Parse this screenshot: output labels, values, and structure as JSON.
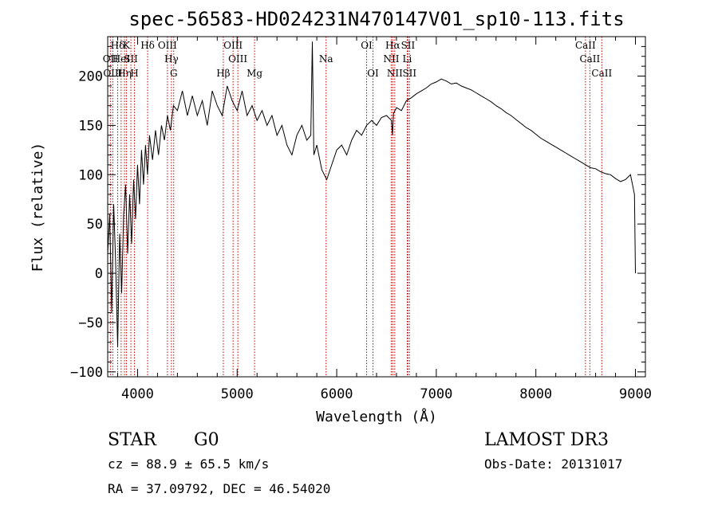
{
  "chart_data": {
    "type": "line",
    "title": "spec-56583-HD024231N470147V01_sp10-113.fits",
    "xlabel": "Wavelength (Å)",
    "ylabel": "Flux (relative)",
    "xlim": [
      3700,
      9100
    ],
    "ylim": [
      -105,
      240
    ],
    "x_ticks": [
      4000,
      5000,
      6000,
      7000,
      8000,
      9000
    ],
    "y_ticks": [
      -100,
      -50,
      0,
      50,
      100,
      150,
      200
    ],
    "grid": false,
    "series": [
      {
        "points": [
          [
            3700,
            20
          ],
          [
            3720,
            60
          ],
          [
            3740,
            -40
          ],
          [
            3760,
            70
          ],
          [
            3780,
            10
          ],
          [
            3800,
            -75
          ],
          [
            3820,
            40
          ],
          [
            3840,
            -20
          ],
          [
            3860,
            60
          ],
          [
            3880,
            90
          ],
          [
            3900,
            20
          ],
          [
            3920,
            80
          ],
          [
            3940,
            30
          ],
          [
            3960,
            95
          ],
          [
            3980,
            55
          ],
          [
            4000,
            110
          ],
          [
            4020,
            70
          ],
          [
            4040,
            125
          ],
          [
            4060,
            90
          ],
          [
            4080,
            130
          ],
          [
            4100,
            100
          ],
          [
            4120,
            140
          ],
          [
            4150,
            115
          ],
          [
            4180,
            145
          ],
          [
            4210,
            120
          ],
          [
            4240,
            150
          ],
          [
            4270,
            135
          ],
          [
            4300,
            160
          ],
          [
            4330,
            145
          ],
          [
            4360,
            170
          ],
          [
            4400,
            165
          ],
          [
            4450,
            185
          ],
          [
            4500,
            160
          ],
          [
            4550,
            180
          ],
          [
            4600,
            160
          ],
          [
            4650,
            175
          ],
          [
            4700,
            150
          ],
          [
            4750,
            185
          ],
          [
            4800,
            170
          ],
          [
            4850,
            160
          ],
          [
            4900,
            190
          ],
          [
            4950,
            175
          ],
          [
            5000,
            165
          ],
          [
            5050,
            185
          ],
          [
            5100,
            160
          ],
          [
            5150,
            170
          ],
          [
            5200,
            155
          ],
          [
            5250,
            165
          ],
          [
            5300,
            150
          ],
          [
            5350,
            160
          ],
          [
            5400,
            140
          ],
          [
            5450,
            150
          ],
          [
            5500,
            130
          ],
          [
            5550,
            120
          ],
          [
            5600,
            140
          ],
          [
            5650,
            150
          ],
          [
            5700,
            135
          ],
          [
            5740,
            140
          ],
          [
            5755,
            235
          ],
          [
            5770,
            120
          ],
          [
            5800,
            130
          ],
          [
            5850,
            105
          ],
          [
            5900,
            95
          ],
          [
            5950,
            110
          ],
          [
            6000,
            125
          ],
          [
            6050,
            130
          ],
          [
            6100,
            120
          ],
          [
            6150,
            135
          ],
          [
            6200,
            145
          ],
          [
            6250,
            140
          ],
          [
            6300,
            150
          ],
          [
            6350,
            155
          ],
          [
            6400,
            150
          ],
          [
            6450,
            158
          ],
          [
            6500,
            160
          ],
          [
            6550,
            155
          ],
          [
            6560,
            140
          ],
          [
            6570,
            162
          ],
          [
            6600,
            168
          ],
          [
            6650,
            165
          ],
          [
            6700,
            175
          ],
          [
            6750,
            178
          ],
          [
            6800,
            182
          ],
          [
            6850,
            185
          ],
          [
            6900,
            188
          ],
          [
            6950,
            192
          ],
          [
            7000,
            194
          ],
          [
            7050,
            197
          ],
          [
            7100,
            195
          ],
          [
            7150,
            192
          ],
          [
            7200,
            193
          ],
          [
            7250,
            190
          ],
          [
            7300,
            188
          ],
          [
            7350,
            186
          ],
          [
            7400,
            183
          ],
          [
            7450,
            180
          ],
          [
            7500,
            177
          ],
          [
            7550,
            174
          ],
          [
            7600,
            170
          ],
          [
            7650,
            167
          ],
          [
            7700,
            163
          ],
          [
            7750,
            160
          ],
          [
            7800,
            156
          ],
          [
            7850,
            152
          ],
          [
            7900,
            148
          ],
          [
            7950,
            145
          ],
          [
            8000,
            141
          ],
          [
            8050,
            137
          ],
          [
            8100,
            134
          ],
          [
            8150,
            131
          ],
          [
            8200,
            128
          ],
          [
            8250,
            125
          ],
          [
            8300,
            122
          ],
          [
            8350,
            119
          ],
          [
            8400,
            116
          ],
          [
            8450,
            113
          ],
          [
            8500,
            110
          ],
          [
            8550,
            107
          ],
          [
            8600,
            106
          ],
          [
            8650,
            103
          ],
          [
            8700,
            101
          ],
          [
            8750,
            100
          ],
          [
            8800,
            96
          ],
          [
            8850,
            93
          ],
          [
            8900,
            95
          ],
          [
            8950,
            100
          ],
          [
            8990,
            80
          ],
          [
            9000,
            0
          ]
        ]
      }
    ],
    "lines": [
      {
        "wl": 3727,
        "name": "OII",
        "row": 2
      },
      {
        "wl": 3751,
        "name": "OIII",
        "row": 3
      },
      {
        "wl": 3800,
        "name": "Hδ",
        "row": 1
      },
      {
        "wl": 3835,
        "name": "HeI",
        "row": 2
      },
      {
        "wl": 3869,
        "name": "Hη",
        "row": 3
      },
      {
        "wl": 3889,
        "name": "K",
        "row": 1
      },
      {
        "wl": 3933,
        "name": "SII",
        "row": 2
      },
      {
        "wl": 3968,
        "name": "H",
        "row": 3
      },
      {
        "wl": 4101,
        "name": "Hδ",
        "row": 1
      },
      {
        "wl": 4300,
        "name": "OIII",
        "row": 1
      },
      {
        "wl": 4340,
        "name": "Hγ",
        "row": 2
      },
      {
        "wl": 4363,
        "name": "G",
        "row": 3
      },
      {
        "wl": 4861,
        "name": "Hβ",
        "row": 3
      },
      {
        "wl": 4959,
        "name": "OIII",
        "row": 1
      },
      {
        "wl": 5007,
        "name": "OIII",
        "row": 2
      },
      {
        "wl": 5175,
        "name": "Mg",
        "row": 3
      },
      {
        "wl": 5893,
        "name": "Na",
        "row": 2
      },
      {
        "wl": 6300,
        "name": "OI",
        "row": 1
      },
      {
        "wl": 6364,
        "name": "OI",
        "row": 3
      },
      {
        "wl": 6548,
        "name": "NII",
        "row": 2
      },
      {
        "wl": 6563,
        "name": "Hα",
        "row": 1
      },
      {
        "wl": 6583,
        "name": "NII",
        "row": 3
      },
      {
        "wl": 6708,
        "name": "Li",
        "row": 2
      },
      {
        "wl": 6716,
        "name": "SII",
        "row": 1
      },
      {
        "wl": 6731,
        "name": "SII",
        "row": 3
      },
      {
        "wl": 8498,
        "name": "CaII",
        "row": 1
      },
      {
        "wl": 8542,
        "name": "CaII",
        "row": 2
      },
      {
        "wl": 8662,
        "name": "CaII",
        "row": 3
      }
    ]
  },
  "info": {
    "class_label": "STAR",
    "subclass": "G0",
    "survey": "LAMOST DR3",
    "cz": "cz = 88.9 ± 65.5 km/s",
    "obs_date": "Obs-Date: 20131017",
    "coords": "RA =  37.09792, DEC =  46.54020"
  },
  "colors": {
    "line_marker": "#cc0000",
    "spectrum": "#000000"
  }
}
